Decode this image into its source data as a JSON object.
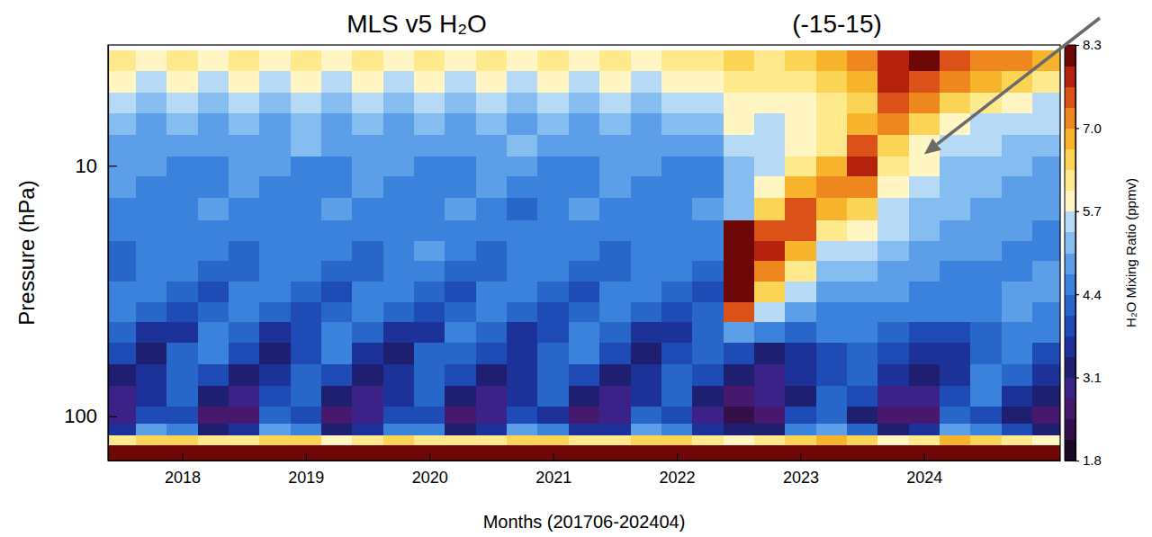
{
  "chart_data": {
    "type": "heatmap",
    "title": "MLS v5 H₂O",
    "subtitle": "(-15-15)",
    "x_label": "Months (201706-202404)",
    "y_label": "Pressure (hPa)",
    "log": "y",
    "xlim": [
      2017.4,
      2025.1
    ],
    "ylim": [
      150,
      3.3
    ],
    "xticks": [
      2018,
      2019,
      2020,
      2021,
      2022,
      2023,
      2024
    ],
    "yticks": [
      10,
      100
    ],
    "x": [
      2017.5,
      2017.75,
      2018,
      2018.25,
      2018.5,
      2018.75,
      2019,
      2019.25,
      2019.5,
      2019.75,
      2020,
      2020.25,
      2020.5,
      2020.75,
      2021,
      2021.25,
      2021.5,
      2021.75,
      2022,
      2022.25,
      2022.5,
      2022.75,
      2023,
      2023.25,
      2023.5,
      2023.75,
      2024,
      2024.25,
      2024.5,
      2024.75,
      2025
    ],
    "y": [
      147,
      135,
      124,
      113,
      100,
      83,
      68,
      56,
      46,
      38,
      32,
      26,
      22,
      18,
      15,
      12,
      10,
      8.3,
      6.8,
      5.6,
      4.6,
      3.8
    ],
    "values": [
      [
        9.2,
        9.1,
        9.3,
        9.2,
        9.1,
        9.2,
        9.3,
        9.2,
        9.1,
        9.2,
        9.3,
        9.2,
        9.2,
        9.1,
        9.3,
        9.2,
        9.1,
        9.2,
        9.3,
        9.2,
        9.2,
        9.2,
        9.3,
        9.2,
        9.1,
        9.2,
        9.3,
        9.2,
        9.1,
        9.2,
        9.3
      ],
      [
        8.4,
        8.5,
        8.3,
        8.4,
        8.5,
        8.6,
        8.3,
        8.4,
        8.5,
        8.6,
        8.3,
        8.4,
        8.4,
        8.5,
        8.3,
        8.4,
        8.5,
        8.6,
        8.3,
        8.4,
        8.4,
        8.5,
        8.6,
        8.7,
        8.4,
        8.3,
        8.4,
        8.6,
        8.5,
        8.4,
        8.3
      ],
      [
        6.2,
        6.5,
        6.4,
        6.1,
        6.3,
        6.6,
        6.4,
        6.0,
        6.3,
        6.5,
        6.3,
        6.1,
        6.2,
        6.4,
        6.5,
        6.1,
        6.3,
        6.5,
        6.4,
        6.2,
        6.0,
        6.1,
        6.5,
        6.8,
        6.4,
        6.0,
        6.1,
        6.8,
        6.5,
        6.3,
        6.0
      ],
      [
        3.7,
        4.8,
        4.4,
        3.4,
        3.6,
        4.9,
        4.5,
        3.3,
        3.5,
        4.7,
        4.6,
        3.4,
        3.7,
        4.8,
        4.4,
        3.5,
        3.6,
        4.9,
        4.5,
        3.6,
        3.2,
        3.4,
        4.5,
        5.0,
        4.3,
        3.4,
        3.5,
        5.0,
        4.5,
        4.0,
        3.3
      ],
      [
        2.9,
        4.0,
        3.8,
        2.6,
        2.7,
        4.1,
        3.8,
        2.5,
        2.8,
        4.0,
        3.9,
        2.7,
        2.8,
        4.0,
        3.7,
        2.6,
        2.8,
        4.1,
        3.9,
        2.8,
        2.4,
        2.6,
        3.8,
        4.2,
        3.4,
        2.6,
        2.7,
        4.3,
        3.8,
        3.2,
        2.5
      ],
      [
        2.9,
        3.7,
        4.2,
        3.3,
        2.8,
        3.8,
        4.2,
        3.2,
        2.9,
        3.7,
        4.1,
        3.3,
        2.9,
        3.6,
        4.2,
        3.3,
        2.8,
        3.7,
        4.2,
        3.3,
        2.7,
        2.8,
        3.4,
        4.1,
        3.8,
        3.0,
        2.9,
        3.8,
        4.4,
        3.7,
        3.1
      ],
      [
        3.1,
        3.5,
        4.3,
        3.9,
        3.1,
        3.5,
        4.2,
        3.9,
        3.2,
        3.6,
        4.3,
        3.8,
        3.1,
        3.5,
        4.3,
        3.9,
        3.2,
        3.5,
        4.2,
        3.8,
        3.2,
        3.0,
        3.5,
        3.9,
        4.1,
        3.5,
        3.2,
        3.5,
        4.5,
        4.2,
        3.6
      ],
      [
        3.8,
        3.4,
        4.1,
        4.4,
        3.8,
        3.4,
        4.0,
        4.4,
        3.7,
        3.4,
        4.1,
        4.3,
        3.8,
        3.5,
        4.1,
        4.4,
        3.8,
        3.4,
        4.0,
        4.2,
        3.8,
        3.4,
        3.6,
        4.0,
        4.3,
        3.9,
        3.5,
        3.6,
        4.3,
        4.5,
        4.0
      ],
      [
        4.3,
        3.6,
        3.7,
        4.4,
        4.3,
        3.6,
        3.8,
        4.4,
        4.2,
        3.7,
        3.7,
        4.4,
        4.3,
        3.6,
        3.8,
        4.5,
        4.3,
        3.6,
        3.7,
        4.3,
        4.9,
        4.6,
        4.3,
        4.4,
        4.5,
        4.3,
        4.0,
        3.9,
        4.3,
        4.6,
        4.4
      ],
      [
        4.6,
        4.2,
        3.8,
        4.2,
        4.6,
        4.2,
        3.9,
        4.2,
        4.5,
        4.2,
        3.8,
        4.3,
        4.6,
        4.1,
        3.8,
        4.2,
        4.6,
        4.2,
        3.9,
        4.2,
        7.4,
        5.6,
        4.8,
        4.6,
        4.7,
        4.6,
        4.5,
        4.4,
        4.7,
        4.8,
        4.5
      ],
      [
        4.5,
        4.6,
        4.1,
        4.0,
        4.5,
        4.6,
        4.1,
        4.0,
        4.4,
        4.6,
        4.2,
        4.0,
        4.5,
        4.6,
        4.1,
        4.0,
        4.5,
        4.7,
        4.1,
        4.0,
        8.8,
        6.4,
        5.4,
        4.8,
        4.9,
        4.8,
        4.7,
        4.6,
        4.6,
        4.8,
        4.8
      ],
      [
        4.3,
        4.7,
        4.5,
        4.1,
        4.3,
        4.7,
        4.5,
        4.1,
        4.3,
        4.6,
        4.5,
        4.1,
        4.3,
        4.7,
        4.5,
        4.2,
        4.3,
        4.7,
        4.5,
        4.1,
        9.6,
        7.2,
        6.1,
        5.2,
        5.2,
        5.0,
        4.8,
        4.7,
        4.6,
        4.6,
        4.8
      ],
      [
        4.3,
        4.6,
        4.7,
        4.4,
        4.3,
        4.6,
        4.7,
        4.4,
        4.3,
        4.6,
        4.8,
        4.4,
        4.2,
        4.6,
        4.7,
        4.4,
        4.3,
        4.6,
        4.7,
        4.4,
        9.4,
        7.8,
        6.8,
        5.6,
        5.5,
        5.2,
        5.0,
        4.9,
        4.8,
        4.7,
        4.7
      ],
      [
        4.4,
        4.4,
        4.7,
        4.7,
        4.4,
        4.4,
        4.7,
        4.7,
        4.4,
        4.5,
        4.7,
        4.7,
        4.4,
        4.4,
        4.7,
        4.6,
        4.4,
        4.4,
        4.7,
        4.7,
        8.3,
        7.6,
        7.4,
        6.2,
        5.9,
        5.4,
        5.1,
        5.0,
        4.9,
        4.8,
        4.7
      ],
      [
        4.6,
        4.4,
        4.6,
        4.8,
        4.6,
        4.4,
        4.6,
        4.8,
        4.6,
        4.4,
        4.6,
        4.8,
        4.6,
        4.3,
        4.6,
        4.8,
        4.6,
        4.4,
        4.6,
        4.8,
        5.2,
        6.6,
        7.5,
        6.9,
        6.4,
        5.6,
        5.3,
        5.1,
        5.0,
        4.9,
        4.8
      ],
      [
        4.8,
        4.6,
        4.5,
        4.7,
        4.8,
        4.6,
        4.5,
        4.7,
        4.8,
        4.6,
        4.4,
        4.7,
        4.8,
        4.6,
        4.5,
        4.7,
        4.8,
        4.6,
        4.5,
        4.7,
        5.1,
        6.0,
        6.8,
        7.3,
        7.0,
        5.9,
        5.6,
        5.2,
        5.1,
        5.0,
        4.9
      ],
      [
        4.8,
        4.8,
        4.6,
        4.7,
        4.8,
        4.8,
        4.5,
        4.7,
        4.8,
        4.8,
        4.6,
        4.7,
        4.8,
        4.8,
        4.6,
        4.7,
        4.8,
        4.8,
        4.6,
        4.7,
        5.2,
        5.7,
        6.1,
        6.9,
        7.9,
        6.1,
        5.9,
        5.3,
        5.2,
        5.1,
        5.0
      ],
      [
        4.8,
        5.0,
        5.0,
        4.8,
        4.8,
        5.0,
        5.1,
        4.8,
        4.8,
        5.0,
        5.0,
        4.8,
        4.8,
        5.1,
        5.0,
        4.8,
        4.8,
        5.0,
        5.0,
        4.9,
        5.5,
        5.6,
        5.8,
        6.3,
        7.4,
        6.6,
        6.0,
        5.6,
        5.4,
        5.3,
        5.2
      ],
      [
        5.3,
        4.9,
        5.2,
        5.0,
        5.3,
        4.9,
        5.2,
        5.0,
        5.3,
        4.9,
        5.2,
        5.0,
        5.3,
        4.9,
        5.2,
        5.0,
        5.3,
        4.9,
        5.2,
        5.1,
        5.8,
        5.7,
        5.8,
        6.1,
        6.8,
        7.3,
        6.5,
        6.0,
        5.7,
        5.5,
        5.4
      ],
      [
        5.5,
        5.2,
        5.6,
        5.3,
        5.5,
        5.2,
        5.6,
        5.3,
        5.5,
        5.2,
        5.6,
        5.3,
        5.5,
        5.2,
        5.6,
        5.3,
        5.5,
        5.2,
        5.6,
        5.4,
        6.0,
        5.9,
        6.0,
        6.2,
        6.5,
        7.6,
        7.0,
        6.5,
        6.2,
        5.9,
        5.7
      ],
      [
        5.9,
        5.5,
        6.0,
        5.7,
        5.9,
        5.5,
        6.0,
        5.7,
        5.9,
        5.5,
        6.0,
        5.7,
        5.9,
        5.5,
        6.0,
        5.7,
        5.9,
        5.5,
        6.0,
        5.8,
        6.2,
        6.1,
        6.3,
        6.5,
        6.7,
        7.8,
        7.6,
        7.0,
        6.7,
        6.4,
        6.2
      ],
      [
        6.2,
        5.8,
        6.3,
        6.0,
        6.2,
        5.8,
        6.3,
        6.0,
        6.2,
        5.8,
        6.3,
        6.0,
        6.2,
        5.8,
        6.3,
        6.0,
        6.2,
        5.8,
        6.3,
        6.1,
        6.4,
        6.3,
        6.6,
        6.9,
        7.0,
        7.9,
        8.0,
        7.6,
        7.3,
        7.0,
        6.8
      ]
    ],
    "colorbar": {
      "label": "H₂O Mixing Ratio (ppmv)",
      "range": [
        1.8,
        8.3
      ],
      "ticks": [
        1.8,
        3.1,
        4.4,
        5.7,
        {
          "value": 7,
          "label": "7.0"
        },
        8.3
      ]
    },
    "annotations": [
      {
        "x": 2024,
        "y": 9
      }
    ]
  }
}
